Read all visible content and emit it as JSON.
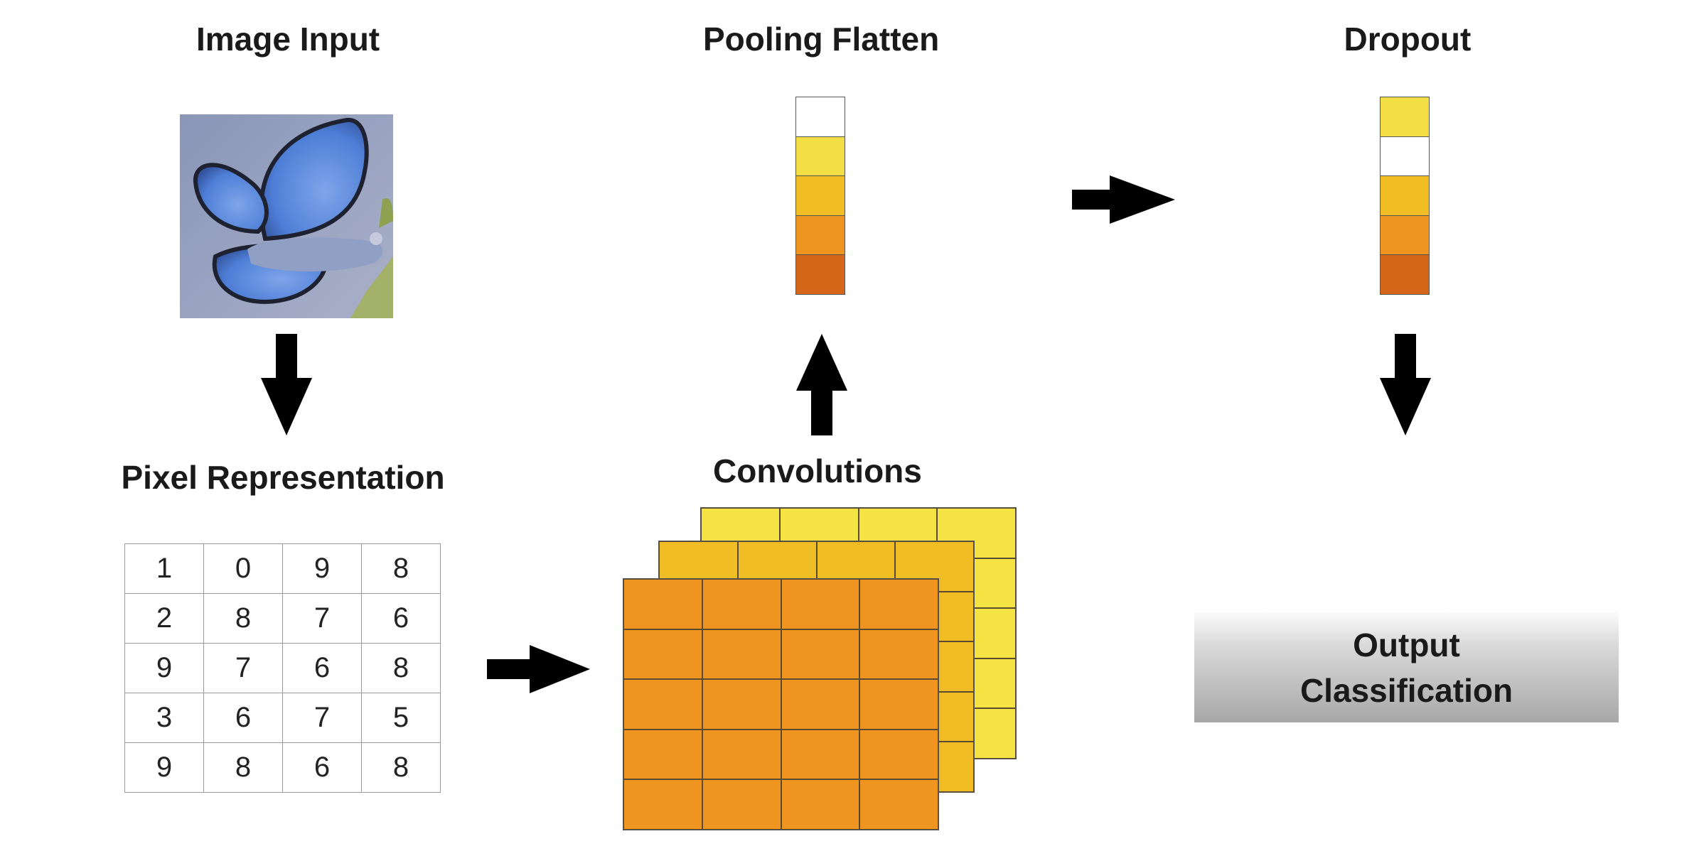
{
  "titles": {
    "image_input": "Image Input",
    "pooling_flatten": "Pooling Flatten",
    "dropout": "Dropout",
    "pixel_representation": "Pixel Representation",
    "convolutions": "Convolutions"
  },
  "output": {
    "line1": "Output",
    "line2": "Classification"
  },
  "pixel_grid": [
    [
      "1",
      "0",
      "9",
      "8"
    ],
    [
      "2",
      "8",
      "7",
      "6"
    ],
    [
      "9",
      "7",
      "6",
      "8"
    ],
    [
      "3",
      "6",
      "7",
      "5"
    ],
    [
      "9",
      "8",
      "6",
      "8"
    ]
  ],
  "pooling_colors": [
    "#ffffff",
    "#f4de45",
    "#f0bd25",
    "#ef951f",
    "#d66619"
  ],
  "dropout_colors": [
    "#f4de45",
    "#ffffff",
    "#f0bd25",
    "#ef951f",
    "#d66619"
  ],
  "convolution_layer_colors": [
    "#f4e342",
    "#f0bd25",
    "#ef951f"
  ],
  "arrow_color": "#000000"
}
